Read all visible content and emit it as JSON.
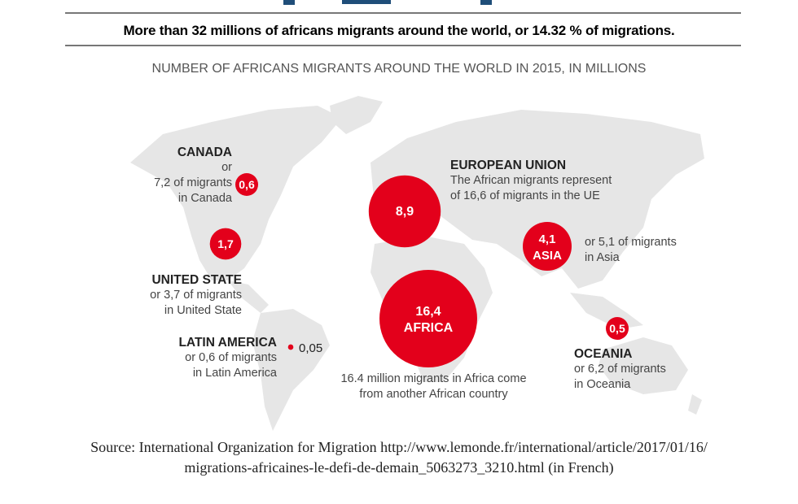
{
  "headline": "More than 32 millions of africans migrants around the world, or 14.32 % of migrations.",
  "subtitle": "NUMBER OF  AFRICANS MIGRANTS AROUND THE WORLD IN 2015, IN MILLIONS",
  "colors": {
    "bubble": "#e3001b",
    "land": "#e6e6e6",
    "title_partial": "#1f4e79"
  },
  "regions": [
    {
      "name": "CANADA",
      "value": "0,6",
      "lines": [
        "or",
        "7,2 of migrants",
        "in Canada"
      ]
    },
    {
      "name": "UNITED STATE",
      "value": "1,7",
      "lines": [
        "or 3,7 of migrants",
        "in United State"
      ]
    },
    {
      "name": "LATIN AMERICA",
      "value": "0,05",
      "lines": [
        "or 0,6 of migrants",
        "in Latin America"
      ]
    },
    {
      "name": "EUROPEAN UNION",
      "value": "8,9",
      "lines": [
        "The African migrants represent",
        "of 16,6 of migrants in the UE"
      ]
    },
    {
      "name": "AFRICA",
      "value": "16,4",
      "lines": [
        "16.4 million migrants in Africa come",
        "from another African country"
      ]
    },
    {
      "name": "ASIA",
      "value": "4,1",
      "lines": [
        "or 5,1 of migrants",
        "in Asia"
      ]
    },
    {
      "name": "OCEANIA",
      "value": "0,5",
      "lines": [
        "or 6,2 of migrants",
        "in Oceania"
      ]
    }
  ],
  "chart_data": {
    "type": "bubble-map",
    "title": "NUMBER OF  AFRICANS MIGRANTS AROUND THE WORLD IN 2015, IN MILLIONS",
    "categories": [
      "CANADA",
      "UNITED STATE",
      "LATIN AMERICA",
      "EUROPEAN UNION",
      "AFRICA",
      "ASIA",
      "OCEANIA"
    ],
    "values": [
      0.6,
      1.7,
      0.05,
      8.9,
      16.4,
      4.1,
      0.5
    ]
  },
  "source": {
    "line1": "Source: International Organization for Migration http://www.lemonde.fr/international/article/2017/01/16/",
    "line2": "migrations-africaines-le-defi-de-demain_5063273_3210.html (in French)"
  }
}
